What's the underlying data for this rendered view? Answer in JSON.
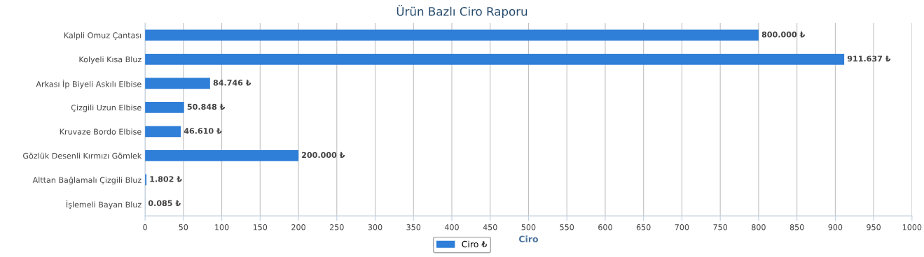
{
  "chart_data": {
    "type": "bar",
    "title": "Ürün Bazlı Ciro Raporu",
    "orientation": "horizontal",
    "categories": [
      "Kalpli Omuz Çantası",
      "Kolyeli Kısa Bluz",
      "Arkası İp Biyeli Askılı Elbise",
      "Çizgili Uzun Elbise",
      "Kruvaze Bordo Elbise",
      "Gözlük Desenli Kırmızı Gömlek",
      "Alttan Bağlamalı Çizgili Bluz",
      "İşlemeli Bayan Bluz"
    ],
    "series": [
      {
        "name": "Ciro ₺",
        "color": "#2f7ed8",
        "values": [
          800,
          911.637,
          84.746,
          50.848,
          46.61,
          200,
          1.802,
          0.085
        ],
        "value_labels": [
          "800.000 ₺",
          "911.637 ₺",
          "84.746 ₺",
          "50.848 ₺",
          "46.610 ₺",
          "200.000 ₺",
          "1.802 ₺",
          "0.085 ₺"
        ]
      }
    ],
    "xlabel": "Ciro",
    "xlim": [
      0,
      1000
    ],
    "xticks": [
      0,
      50,
      100,
      150,
      200,
      250,
      300,
      350,
      400,
      450,
      500,
      550,
      600,
      650,
      700,
      750,
      800,
      850,
      900,
      950,
      1000
    ],
    "grid": "x",
    "legend": "bottom"
  }
}
